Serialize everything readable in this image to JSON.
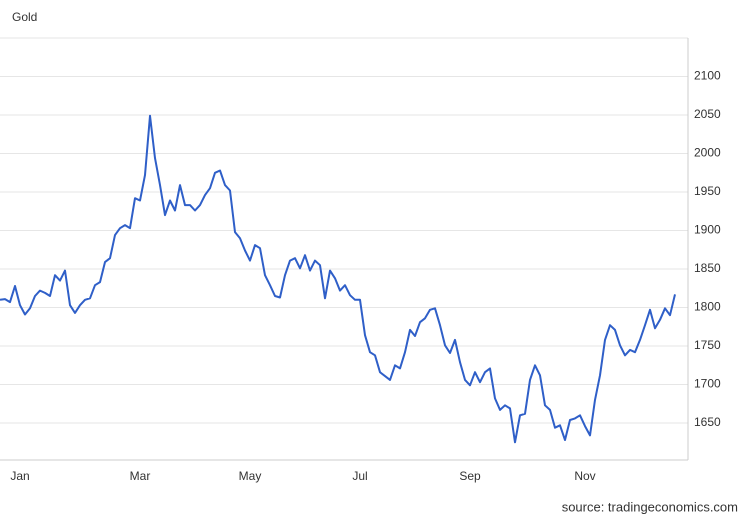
{
  "chart_data": {
    "type": "line",
    "title": "Gold",
    "source": "source: tradingeconomics.com",
    "categories": [
      null,
      null,
      null,
      null,
      "Jan",
      null,
      null,
      null,
      null,
      null,
      null,
      null,
      null,
      null,
      null,
      null,
      null,
      null,
      null,
      null,
      null,
      null,
      null,
      null,
      null,
      null,
      null,
      null,
      "Mar",
      null,
      null,
      null,
      null,
      null,
      null,
      null,
      null,
      null,
      null,
      null,
      null,
      null,
      null,
      null,
      null,
      null,
      null,
      null,
      null,
      null,
      "May",
      null,
      null,
      null,
      null,
      null,
      null,
      null,
      null,
      null,
      null,
      null,
      null,
      null,
      null,
      null,
      null,
      null,
      null,
      null,
      null,
      null,
      "Jul",
      null,
      null,
      null,
      null,
      null,
      null,
      null,
      null,
      null,
      null,
      null,
      null,
      null,
      null,
      null,
      null,
      null,
      null,
      null,
      null,
      null,
      "Sep",
      null,
      null,
      null,
      null,
      null,
      null,
      null,
      null,
      null,
      null,
      null,
      null,
      null,
      null,
      null,
      null,
      null,
      null,
      null,
      null,
      null,
      null,
      "Nov",
      null,
      null,
      null,
      null,
      null,
      null,
      null,
      null,
      null,
      null,
      null,
      null,
      null,
      null,
      null,
      null,
      null,
      null
    ],
    "series": [
      {
        "color": "#2f5fc8",
        "values": [
          1810,
          1811,
          1807,
          1828,
          1803,
          1791,
          1799,
          1815,
          1822,
          1819,
          1815,
          1842,
          1835,
          1848,
          1803,
          1793,
          1803,
          1810,
          1812,
          1829,
          1833,
          1859,
          1864,
          1894,
          1903,
          1907,
          1903,
          1942,
          1939,
          1972,
          2049,
          1994,
          1959,
          1920,
          1939,
          1926,
          1959,
          1933,
          1933,
          1926,
          1933,
          1946,
          1955,
          1975,
          1978,
          1959,
          1952,
          1898,
          1890,
          1874,
          1861,
          1881,
          1877,
          1842,
          1829,
          1815,
          1813,
          1842,
          1861,
          1864,
          1851,
          1868,
          1848,
          1861,
          1855,
          1812,
          1848,
          1838,
          1822,
          1829,
          1816,
          1810,
          1810,
          1764,
          1742,
          1738,
          1716,
          1711,
          1706,
          1725,
          1721,
          1742,
          1771,
          1763,
          1781,
          1786,
          1797,
          1799,
          1777,
          1751,
          1741,
          1758,
          1729,
          1706,
          1699,
          1716,
          1703,
          1716,
          1721,
          1682,
          1667,
          1673,
          1669,
          1625,
          1660,
          1662,
          1706,
          1725,
          1712,
          1673,
          1667,
          1644,
          1647,
          1628,
          1654,
          1656,
          1660,
          1646,
          1634,
          1680,
          1712,
          1758,
          1777,
          1771,
          1751,
          1738,
          1745,
          1742,
          1758,
          1777,
          1797,
          1773,
          1784,
          1799,
          1790,
          1817
        ]
      }
    ],
    "ylim": [
      1602,
      2150
    ],
    "yticks": [
      1650,
      1700,
      1750,
      1800,
      1850,
      1900,
      1950,
      2000,
      2050,
      2100
    ],
    "grid": true
  }
}
